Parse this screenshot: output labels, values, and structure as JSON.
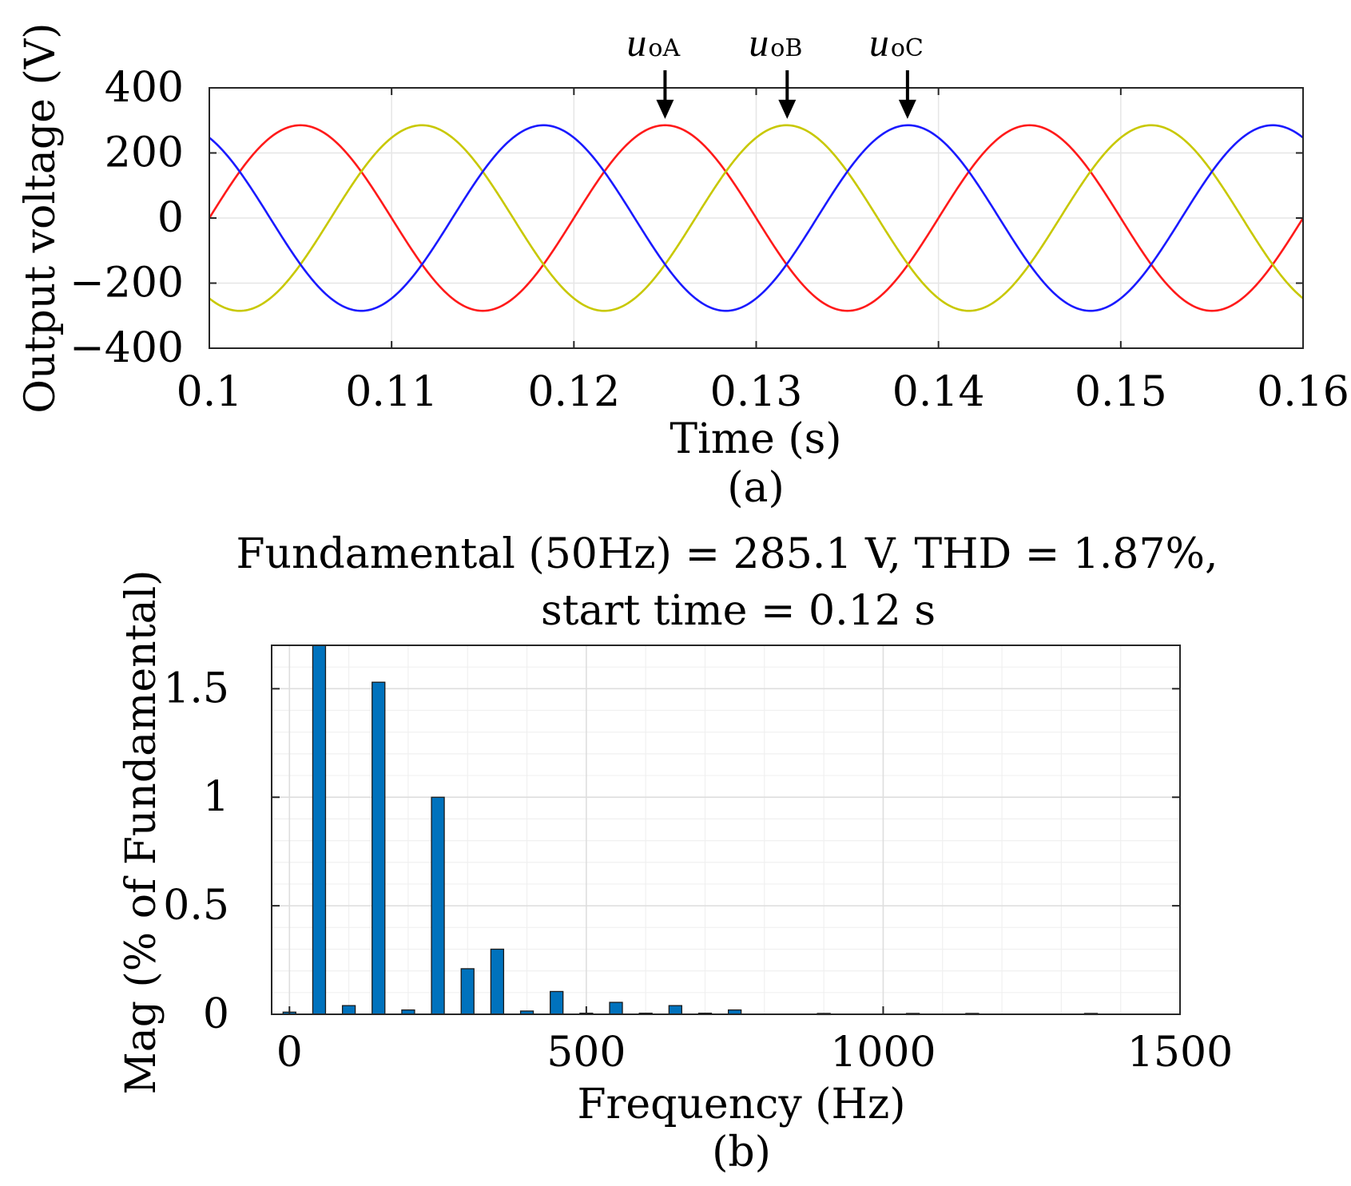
{
  "chart_data": [
    {
      "type": "line",
      "panel_label": "(a)",
      "title": "",
      "xlabel": "Time (s)",
      "ylabel": "Output voltage (V)",
      "xlim": [
        0.1,
        0.16
      ],
      "ylim": [
        -400,
        400
      ],
      "xticks": [
        0.1,
        0.11,
        0.12,
        0.13,
        0.14,
        0.15,
        0.16
      ],
      "xtick_labels": [
        "0.1",
        "0.11",
        "0.12",
        "0.13",
        "0.14",
        "0.15",
        "0.16"
      ],
      "yticks": [
        400,
        200,
        0,
        -200,
        -400
      ],
      "ytick_labels": [
        "400",
        "200",
        "0",
        "−200",
        "−400"
      ],
      "grid": true,
      "series": [
        {
          "name": "uoA",
          "label_main": "u",
          "label_sub": "oA",
          "color": "#ff1a1a",
          "amplitude": 285.1,
          "frequency_hz": 50,
          "phase_deg": 0
        },
        {
          "name": "uoB",
          "label_main": "u",
          "label_sub": "oB",
          "color": "#c8c800",
          "amplitude": 285.1,
          "frequency_hz": 50,
          "phase_deg": -120
        },
        {
          "name": "uoC",
          "label_main": "u",
          "label_sub": "oC",
          "color": "#1a1aff",
          "amplitude": 285.1,
          "frequency_hz": 50,
          "phase_deg": 120
        }
      ],
      "annotations": [
        {
          "series": "uoA",
          "x": 0.125,
          "y": 285.1
        },
        {
          "series": "uoB",
          "x": 0.1317,
          "y": 285.1
        },
        {
          "series": "uoC",
          "x": 0.1383,
          "y": 285.1
        }
      ]
    },
    {
      "type": "bar",
      "panel_label": "(b)",
      "title": "Fundamental (50Hz) = 285.1 V, THD = 1.87%,",
      "subtitle": "start time = 0.12 s",
      "xlabel": "Frequency (Hz)",
      "ylabel": "Mag (% of Fundamental)",
      "xlim": [
        -30,
        1500
      ],
      "ylim": [
        0,
        1.7
      ],
      "xticks": [
        0,
        500,
        1000,
        1500
      ],
      "xtick_labels": [
        "0",
        "500",
        "1000",
        "1500"
      ],
      "yticks": [
        0,
        0.5,
        1,
        1.5
      ],
      "ytick_labels": [
        "0",
        "0.5",
        "1",
        "1.5"
      ],
      "grid": true,
      "color": "#0072bd",
      "x": [
        0,
        50,
        100,
        150,
        200,
        250,
        300,
        350,
        400,
        450,
        500,
        550,
        600,
        650,
        700,
        750,
        900,
        1050,
        1150,
        1350
      ],
      "values": [
        0.01,
        1.7,
        0.04,
        1.53,
        0.02,
        1.0,
        0.21,
        0.3,
        0.015,
        0.105,
        0.005,
        0.055,
        0.005,
        0.04,
        0.005,
        0.02,
        0.004,
        0.004,
        0.004,
        0.004
      ]
    }
  ]
}
